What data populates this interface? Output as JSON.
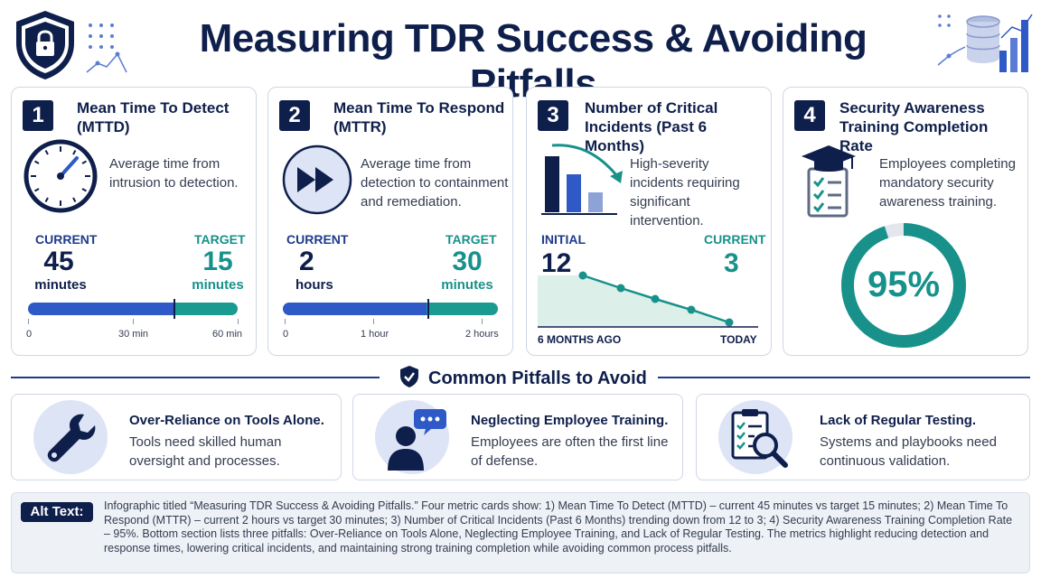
{
  "title": "Measuring TDR Success & Avoiding Pitfalls",
  "colors": {
    "navy": "#0f1f4b",
    "blue": "#2e59c6",
    "teal": "#1b9a8f"
  },
  "cards": [
    {
      "number": "1",
      "title": "Mean Time To Detect (MTTD)",
      "icon": "clock-icon",
      "description": "Average time from intrusion to detection.",
      "current_label": "CURRENT",
      "current_value": "45",
      "current_unit": "minutes",
      "target_label": "TARGET",
      "target_value": "15",
      "target_unit": "minutes",
      "scale": [
        "0",
        "30 min",
        "60 min"
      ]
    },
    {
      "number": "2",
      "title": "Mean Time To Respond (MTTR)",
      "icon": "fast-forward-icon",
      "description": "Average time from detection to containment and remediation.",
      "current_label": "CURRENT",
      "current_value": "2",
      "current_unit": "hours",
      "target_label": "TARGET",
      "target_value": "30",
      "target_unit": "minutes",
      "scale": [
        "0",
        "1 hour",
        "2 hours"
      ]
    },
    {
      "number": "3",
      "title": "Number of Critical Incidents (Past 6 Months)",
      "icon": "bar-chart-down-icon",
      "description": "High-severity incidents requiring significant intervention.",
      "initial_label": "INITIAL",
      "initial_value": "12",
      "current_label": "CURRENT",
      "current_value": "3",
      "x_start": "6 MONTHS AGO",
      "x_end": "TODAY"
    },
    {
      "number": "4",
      "title": "Security Awareness Training Completion Rate",
      "icon": "graduation-checklist-icon",
      "description": "Employees completing mandatory security awareness training.",
      "percent_text": "95%",
      "percent_value": 95
    }
  ],
  "section_title": "Common Pitfalls to Avoid",
  "pitfalls": [
    {
      "icon": "wrench-icon",
      "title": "Over-Reliance on Tools Alone.",
      "description": "Tools need skilled human oversight and processes."
    },
    {
      "icon": "person-chat-icon",
      "title": "Neglecting Employee Training.",
      "description": "Employees are often the first line of defense."
    },
    {
      "icon": "checklist-magnifier-icon",
      "title": "Lack of Regular Testing.",
      "description": "Systems and playbooks need continuous validation."
    }
  ],
  "alt_label": "Alt Text:",
  "alt_text": "Infographic titled “Measuring TDR Success & Avoiding Pitfalls.” Four metric cards show: 1) Mean Time To Detect (MTTD) – current 45 minutes vs target 15 minutes; 2) Mean Time To Respond (MTTR) – current 2 hours vs target 30 minutes; 3) Number of Critical Incidents (Past 6 Months) trending down from 12 to 3; 4) Security Awareness Training Completion Rate – 95%. Bottom section lists three pitfalls: Over-Reliance on Tools Alone, Neglecting Employee Training, and Lack of Regular Testing. The metrics highlight reducing detection and response times, lowering critical incidents, and maintaining strong training completion while avoiding common process pitfalls."
}
